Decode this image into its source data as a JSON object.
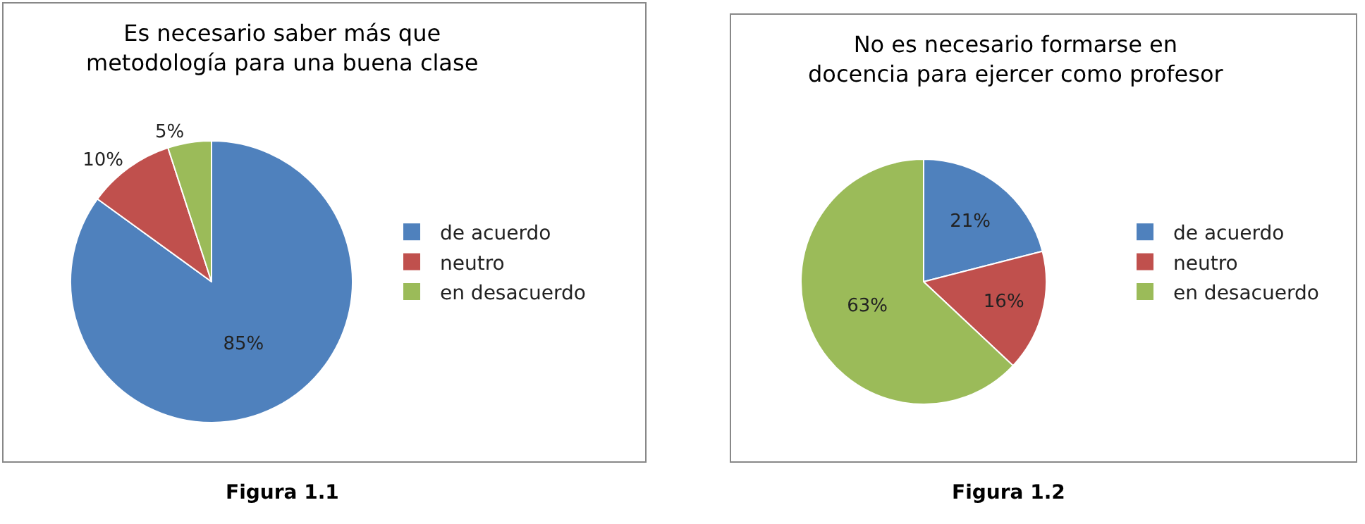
{
  "chart_data": [
    {
      "type": "pie",
      "title": "Es necesario saber más que\nmetodología para una buena clase",
      "categories": [
        "de acuerdo",
        "neutro",
        "en desacuerdo"
      ],
      "values": [
        85,
        10,
        5
      ],
      "colors": [
        "#4f81bd",
        "#c0504d",
        "#9bbb59"
      ],
      "value_labels": [
        "85%",
        "10%",
        "5%"
      ],
      "legend": "right",
      "annotations": [
        "Figura 1.1"
      ]
    },
    {
      "type": "pie",
      "title": "No es necesario formarse en\ndocencia para ejercer como profesor",
      "categories": [
        "de acuerdo",
        "neutro",
        "en desacuerdo"
      ],
      "values": [
        21,
        16,
        63
      ],
      "colors": [
        "#4f81bd",
        "#c0504d",
        "#9bbb59"
      ],
      "value_labels": [
        "21%",
        "16%",
        "63%"
      ],
      "legend": "right",
      "annotations": [
        "Figura 1.2"
      ]
    }
  ]
}
